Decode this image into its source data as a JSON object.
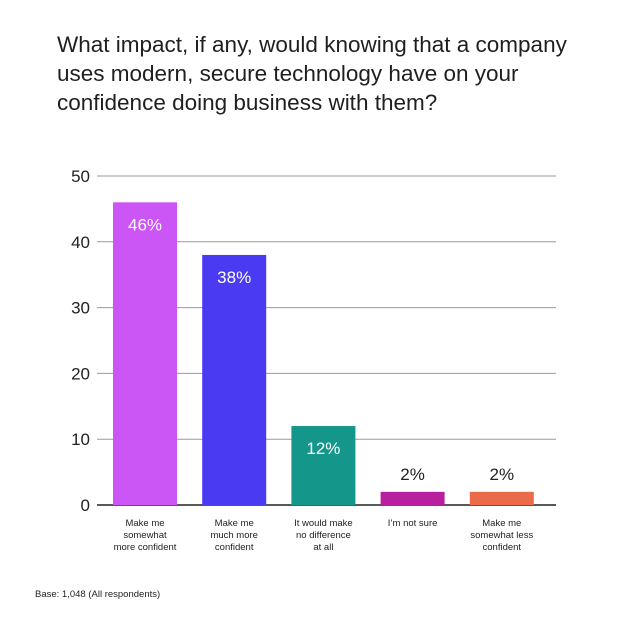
{
  "chart_data": {
    "type": "bar",
    "title": "What impact, if any, would knowing that a company uses modern, secure technology have on your confidence doing business with them?",
    "categories": [
      [
        "Make me",
        "somewhat",
        "more confident"
      ],
      [
        "Make me",
        "much more",
        "confident"
      ],
      [
        "It would make",
        "no difference",
        "at all"
      ],
      [
        "I’m not sure"
      ],
      [
        "Make me",
        "somewhat less",
        "confident"
      ]
    ],
    "values": [
      46,
      38,
      12,
      2,
      2
    ],
    "data_labels": [
      "46%",
      "38%",
      "12%",
      "2%",
      "2%"
    ],
    "colors": [
      "#cc55f5",
      "#4a3bf2",
      "#14968a",
      "#b9209f",
      "#ea6a4a"
    ],
    "ylim": [
      0,
      50
    ],
    "yticks": [
      0,
      10,
      20,
      30,
      40,
      50
    ],
    "grid": true,
    "xlabel": "",
    "ylabel": ""
  },
  "footnote": "Base: 1,048 (All respondents)"
}
